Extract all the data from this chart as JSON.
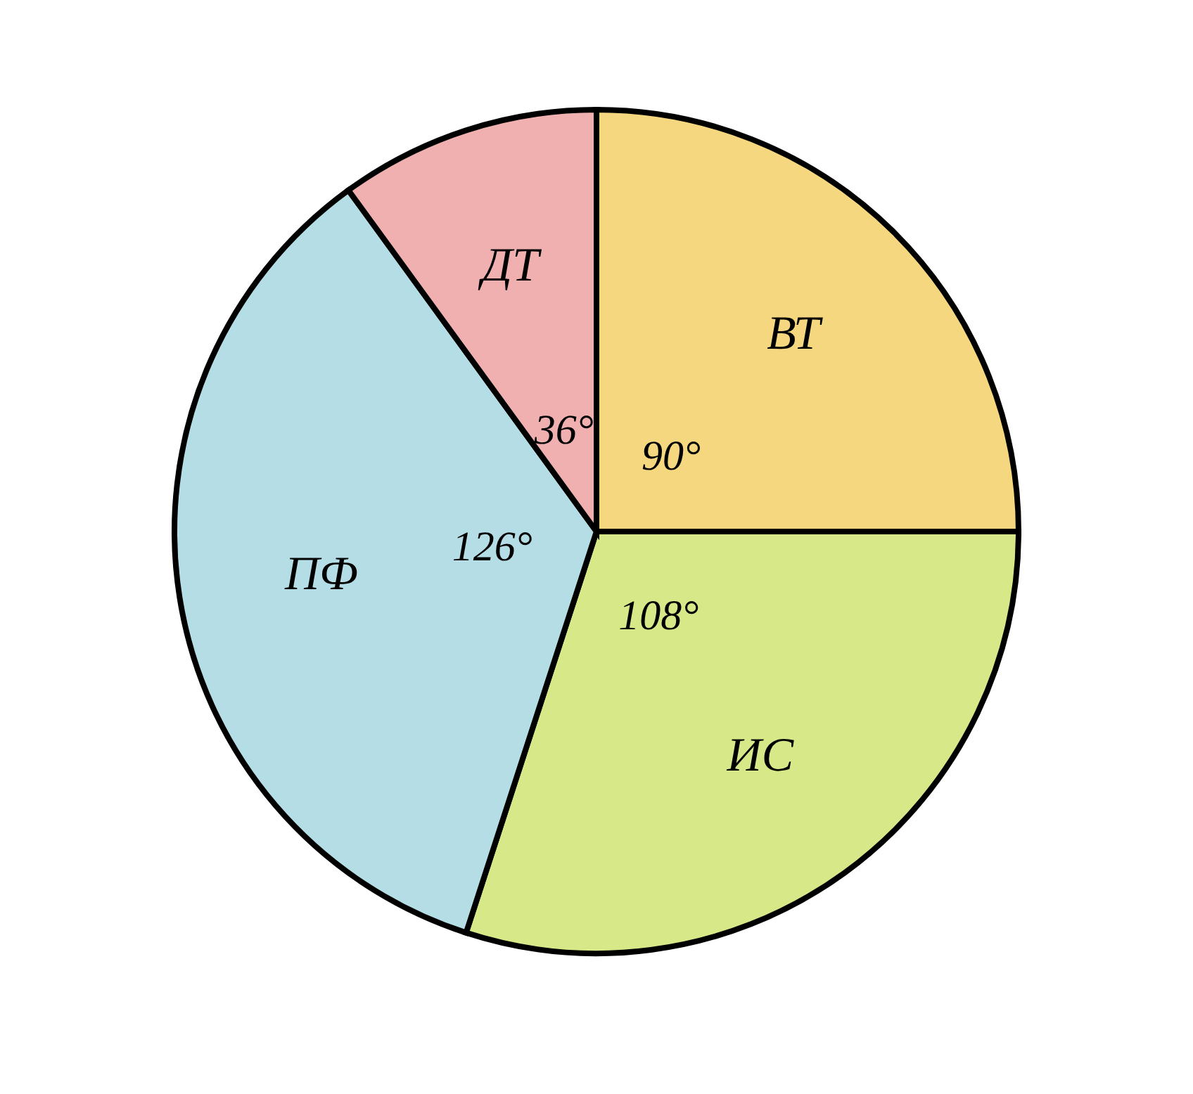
{
  "chart_data": {
    "type": "pie",
    "categories": [
      "ВТ",
      "ИС",
      "ПФ",
      "ДТ"
    ],
    "values": [
      90,
      108,
      126,
      36
    ],
    "value_labels": [
      "90°",
      "108°",
      "126°",
      "36°"
    ],
    "colors": [
      "#f5d77f",
      "#d6e887",
      "#b5dde6",
      "#f0b0b0"
    ],
    "legend": false
  }
}
